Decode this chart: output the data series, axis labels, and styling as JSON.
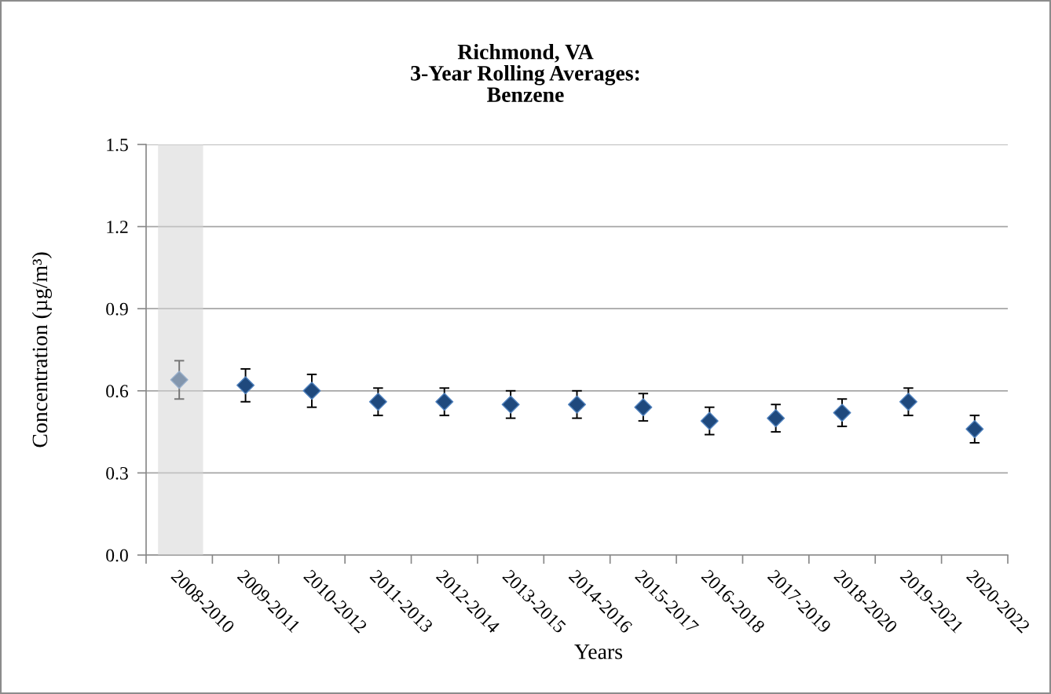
{
  "chart_data": {
    "type": "scatter",
    "title": "Richmond, VA\n3-Year Rolling Averages:\nBenzene",
    "xlabel": "Years",
    "ylabel": "Concentration (µg/m³)",
    "categories": [
      "2008-2010",
      "2009-2011",
      "2010-2012",
      "2011-2013",
      "2012-2014",
      "2013-2015",
      "2014-2016",
      "2015-2017",
      "2016-2018",
      "2017-2019",
      "2018-2020",
      "2019-2021",
      "2020-2022"
    ],
    "values": [
      0.64,
      0.62,
      0.6,
      0.56,
      0.56,
      0.55,
      0.55,
      0.54,
      0.49,
      0.5,
      0.52,
      0.56,
      0.46
    ],
    "errors": [
      0.07,
      0.06,
      0.06,
      0.05,
      0.05,
      0.05,
      0.05,
      0.05,
      0.05,
      0.05,
      0.05,
      0.05,
      0.05
    ],
    "color": "#1f497d",
    "marker": "diamond",
    "ylim": [
      0,
      1.5
    ],
    "yticks": [
      {
        "value": 0,
        "label": "0.0"
      },
      0.3,
      0.6,
      0.9,
      1.2,
      1.5
    ],
    "grid": "y",
    "bands": [
      {
        "axis": "x",
        "from": "2008-2010",
        "to": "2008-2010",
        "color": "#d6d6d6"
      }
    ]
  }
}
